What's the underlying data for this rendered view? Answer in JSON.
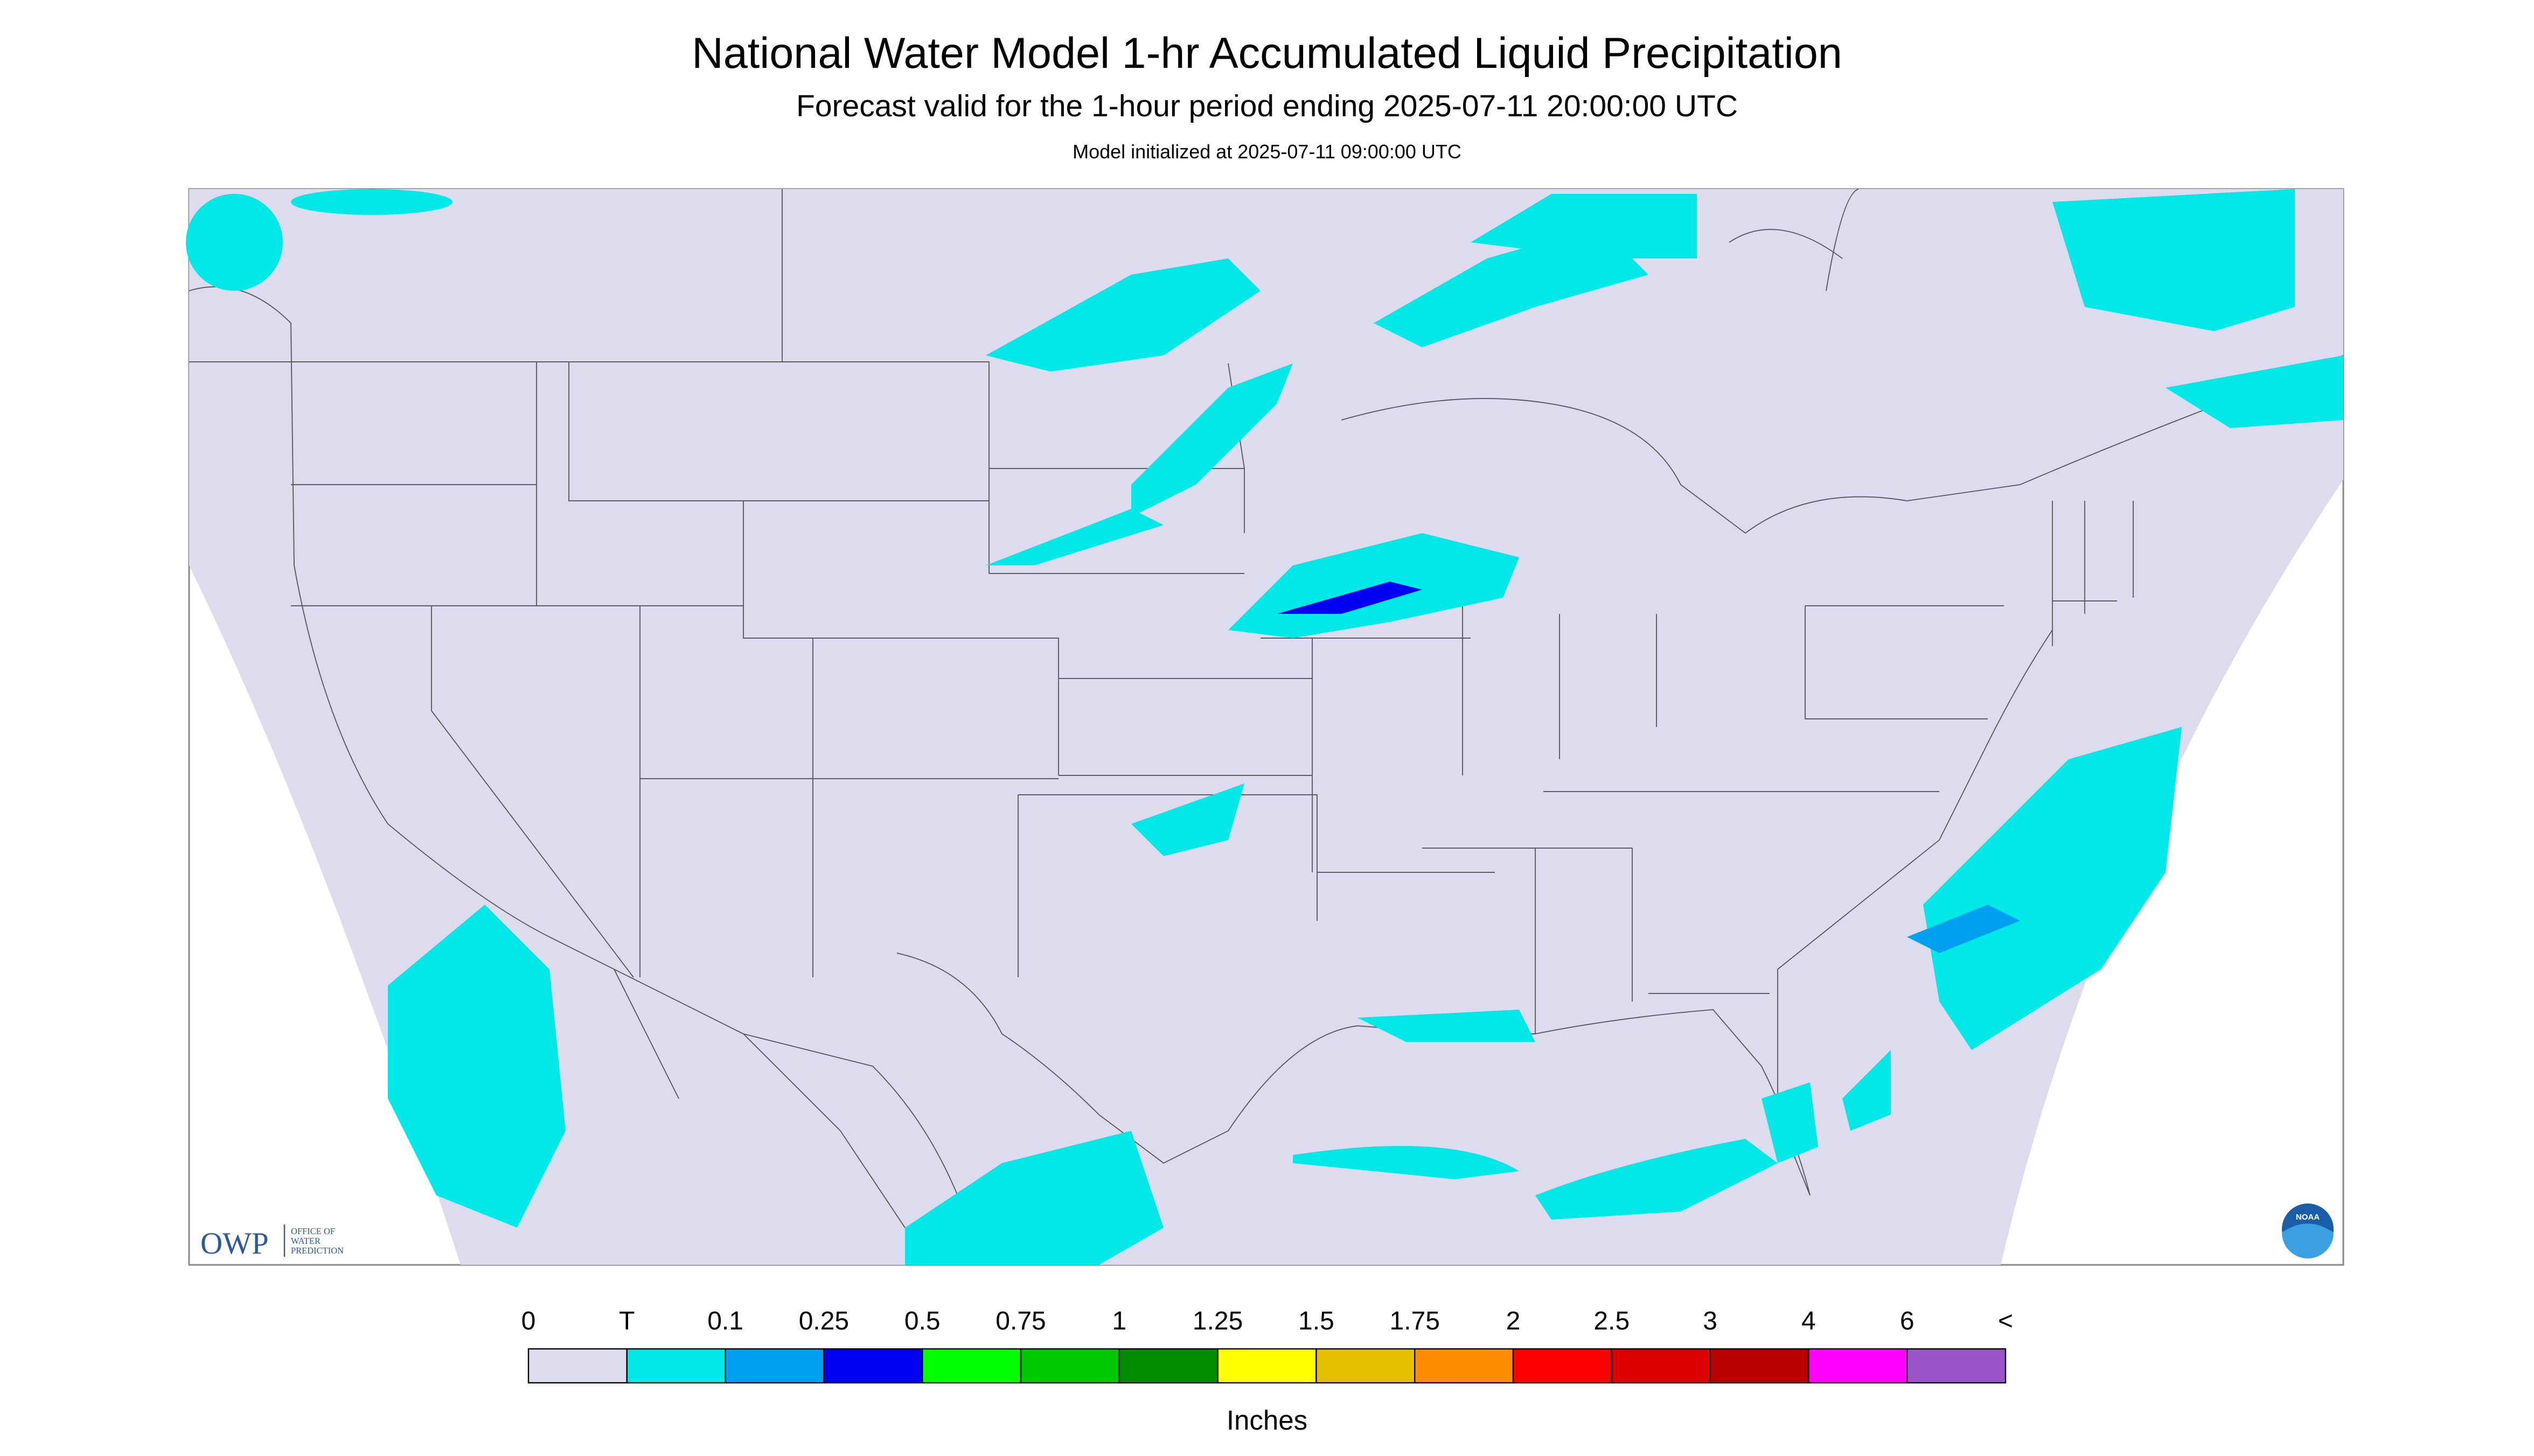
{
  "header": {
    "title": "National Water Model 1-hr Accumulated Liquid Precipitation",
    "subtitle": "Forecast valid for the 1-hour period ending 2025-07-11 20:00:00 UTC",
    "note": "Model initialized at 2025-07-11 09:00:00 UTC"
  },
  "logos": {
    "owp": "OWP",
    "owp_full": [
      "OFFICE OF",
      "WATER",
      "PREDICTION"
    ],
    "noaa": "NOAA"
  },
  "legend": {
    "labels": [
      "0",
      "T",
      "0.1",
      "0.25",
      "0.5",
      "0.75",
      "1",
      "1.25",
      "1.5",
      "1.75",
      "2",
      "2.5",
      "3",
      "4",
      "6",
      "<"
    ],
    "colors": [
      "#dcdcee",
      "#00e8e8",
      "#00a0f0",
      "#0000f0",
      "#00ff00",
      "#00c800",
      "#008c00",
      "#ffff00",
      "#e6be00",
      "#ff8c00",
      "#ff0000",
      "#dc0000",
      "#b90000",
      "#ff00ff",
      "#9955c9"
    ],
    "unit": "Inches"
  }
}
